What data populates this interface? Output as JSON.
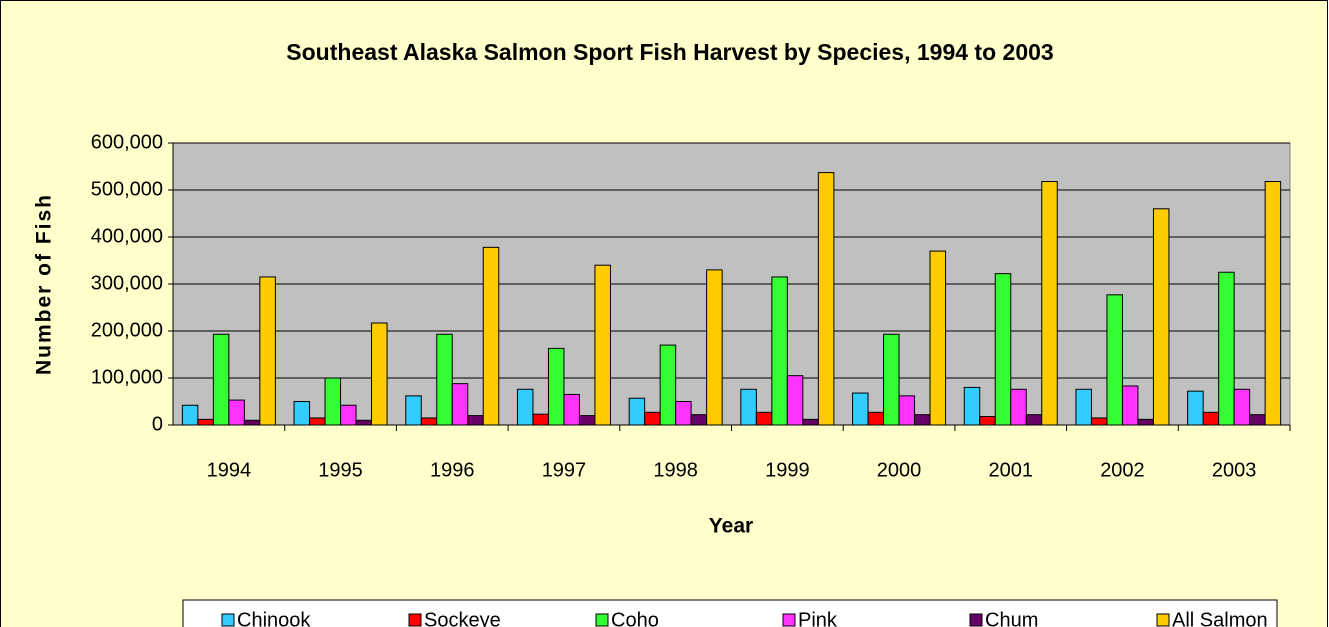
{
  "chart_data": {
    "type": "bar",
    "title": "Southeast Alaska Salmon Sport Fish Harvest by Species, 1994 to 2003",
    "x_label": "Year",
    "y_label": "Number of Fish",
    "categories": [
      "1994",
      "1995",
      "1996",
      "1997",
      "1998",
      "1999",
      "2000",
      "2001",
      "2002",
      "2003"
    ],
    "series": [
      {
        "name": "Chinook",
        "color": "#33ccff",
        "values": [
          42000,
          50000,
          62000,
          76000,
          57000,
          76000,
          68000,
          80000,
          76000,
          72000
        ]
      },
      {
        "name": "Sockeye",
        "color": "#ff0000",
        "values": [
          12000,
          15000,
          15000,
          23000,
          27000,
          27000,
          27000,
          18000,
          15000,
          27000
        ]
      },
      {
        "name": "Coho",
        "color": "#33ff33",
        "values": [
          193000,
          100000,
          193000,
          163000,
          170000,
          315000,
          193000,
          322000,
          277000,
          325000
        ]
      },
      {
        "name": "Pink",
        "color": "#ff33ff",
        "values": [
          53000,
          42000,
          88000,
          65000,
          50000,
          105000,
          62000,
          76000,
          83000,
          76000
        ]
      },
      {
        "name": "Chum",
        "color": "#660066",
        "values": [
          10000,
          10000,
          20000,
          20000,
          22000,
          12000,
          22000,
          22000,
          12000,
          22000
        ]
      },
      {
        "name": "All Salmon",
        "color": "#ffcc00",
        "values": [
          315000,
          217000,
          378000,
          340000,
          330000,
          537000,
          370000,
          518000,
          460000,
          518000
        ]
      }
    ],
    "ylim": [
      0,
      600000
    ],
    "yticks": [
      0,
      {
        "value": 100000,
        "label": "100,000"
      },
      {
        "value": 200000,
        "label": "200,000"
      },
      {
        "value": 300000,
        "label": "300,000"
      },
      {
        "value": 400000,
        "label": "400,000"
      },
      {
        "value": 500000,
        "label": "500,000"
      },
      {
        "value": 600000,
        "label": "600,000"
      }
    ],
    "grid": true,
    "legend": "bottom"
  }
}
